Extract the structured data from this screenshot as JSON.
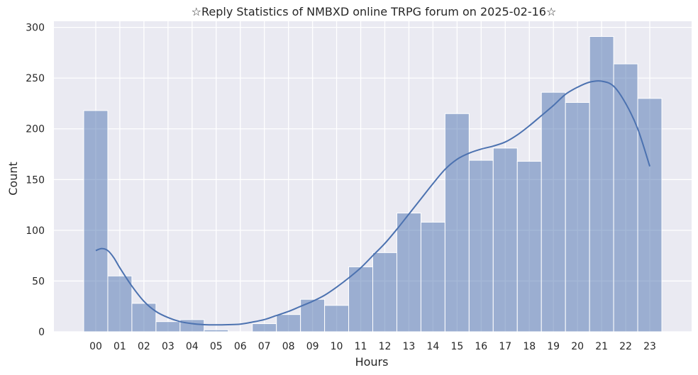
{
  "chart_data": {
    "type": "bar",
    "title": "☆Reply Statistics of NMBXD online TRPG forum on 2025-02-16☆",
    "xlabel": "Hours",
    "ylabel": "Count",
    "categories": [
      "00",
      "01",
      "02",
      "03",
      "04",
      "05",
      "06",
      "07",
      "08",
      "09",
      "10",
      "11",
      "12",
      "13",
      "14",
      "15",
      "16",
      "17",
      "18",
      "19",
      "20",
      "21",
      "22",
      "23"
    ],
    "values": [
      218,
      55,
      28,
      10,
      12,
      2,
      0,
      8,
      17,
      32,
      26,
      64,
      78,
      117,
      108,
      215,
      169,
      181,
      168,
      236,
      226,
      291,
      264,
      230
    ],
    "yticks": [
      0,
      50,
      100,
      150,
      200,
      250,
      300
    ],
    "ylim": [
      0,
      306
    ],
    "grid": true,
    "kde": {
      "x": [
        0,
        0.25,
        0.5,
        0.75,
        1,
        1.5,
        2,
        2.5,
        3,
        3.5,
        4,
        4.5,
        5,
        5.5,
        6,
        6.5,
        7,
        7.5,
        8,
        8.5,
        9,
        9.5,
        10,
        10.5,
        11,
        11.5,
        12,
        12.5,
        13,
        13.5,
        14,
        14.5,
        15,
        15.5,
        16,
        16.5,
        17,
        17.5,
        18,
        18.5,
        19,
        19.5,
        20,
        20.5,
        21,
        21.5,
        22,
        22.5,
        23
      ],
      "y": [
        80,
        82,
        80,
        73,
        63,
        45,
        30,
        20,
        14,
        10,
        8,
        7,
        6.8,
        7,
        7.5,
        9.5,
        12,
        16,
        20,
        25,
        30,
        36,
        44,
        53,
        63,
        75,
        87,
        101,
        116,
        131,
        146,
        160,
        170,
        176,
        180,
        183,
        187,
        194,
        203,
        213,
        223,
        234,
        241,
        246,
        247,
        242,
        225,
        200,
        163
      ]
    },
    "colors": {
      "bar_fill": "#4c72b0",
      "line": "#4c72b0",
      "plot_background": "#eaeaf2",
      "grid": "#ffffff"
    }
  }
}
